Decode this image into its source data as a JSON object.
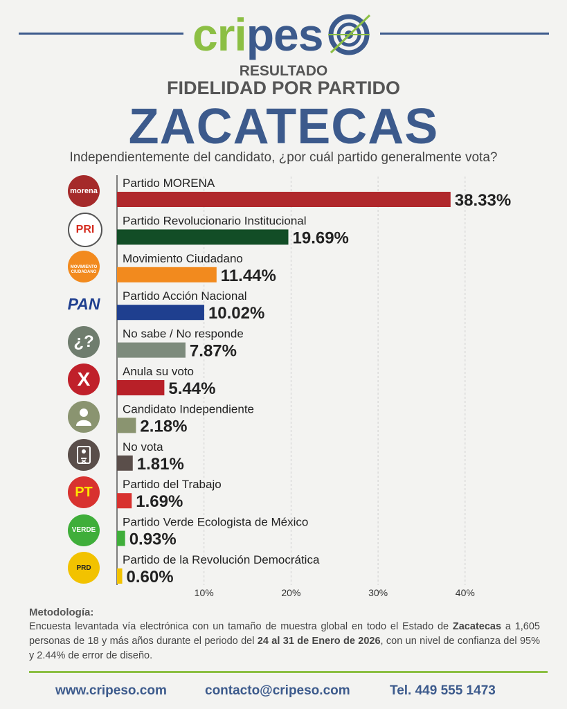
{
  "header": {
    "logo_part1": "cripes",
    "logo_part2": "o",
    "subtitle_1": "RESULTADO",
    "subtitle_2": "FIDELIDAD POR PARTIDO",
    "state": "ZACATECAS",
    "question": "Independientemente del candidato, ¿por cuál partido generalmente vota?"
  },
  "chart_data": {
    "type": "bar",
    "orientation": "horizontal",
    "title": "FIDELIDAD POR PARTIDO",
    "xlim": [
      0,
      40
    ],
    "xticks": [
      "10%",
      "20%",
      "30%",
      "40%"
    ],
    "grid": true,
    "categories": [
      "Partido MORENA",
      "Partido Revolucionario Institucional",
      "Movimiento Ciudadano",
      "Partido Acción Nacional",
      "No sabe / No responde",
      "Anula su voto",
      "Candidato Independiente",
      "No vota",
      "Partido del Trabajo",
      "Partido Verde Ecologista de México",
      "Partido de la Revolución Democrática"
    ],
    "values": [
      38.33,
      19.69,
      11.44,
      10.02,
      7.87,
      5.44,
      2.18,
      1.81,
      1.69,
      0.93,
      0.6
    ],
    "value_labels": [
      "38.33%",
      "19.69%",
      "11.44%",
      "10.02%",
      "7.87%",
      "5.44%",
      "2.18%",
      "1.81%",
      "1.69%",
      "0.93%",
      "0.60%"
    ],
    "colors": [
      "#b0282c",
      "#124d26",
      "#f28a1e",
      "#1f3f8f",
      "#7d8b7c",
      "#b82028",
      "#8a9470",
      "#5a4e4a",
      "#d8322f",
      "#3fae3a",
      "#f2c200"
    ],
    "icons": [
      {
        "name": "morena-logo-icon",
        "text": "morena",
        "bg": "#a52a2a",
        "fg": "#ffffff"
      },
      {
        "name": "pri-logo-icon",
        "text": "PRI",
        "bg": "#ffffff",
        "fg": "#d52b1e"
      },
      {
        "name": "movimiento-ciudadano-logo-icon",
        "text": "MOVIMIENTO CIUDADANO",
        "bg": "#f28a1e",
        "fg": "#ffffff"
      },
      {
        "name": "pan-logo-icon",
        "text": "PAN",
        "bg": "transparent",
        "fg": "#1f3f8f"
      },
      {
        "name": "question-icon",
        "text": "¿?",
        "bg": "#6f7d6e",
        "fg": "#ffffff"
      },
      {
        "name": "cross-icon",
        "text": "X",
        "bg": "#c0202a",
        "fg": "#ffffff"
      },
      {
        "name": "person-icon",
        "text": "",
        "bg": "#8a9470",
        "fg": "#ffffff"
      },
      {
        "name": "ballot-icon",
        "text": "",
        "bg": "#5a4e4a",
        "fg": "#ffffff"
      },
      {
        "name": "pt-logo-icon",
        "text": "PT",
        "bg": "#d8322f",
        "fg": "#ffe400"
      },
      {
        "name": "verde-logo-icon",
        "text": "VERDE",
        "bg": "#3fae3a",
        "fg": "#ffffff"
      },
      {
        "name": "prd-logo-icon",
        "text": "PRD",
        "bg": "#f2c200",
        "fg": "#222222"
      }
    ]
  },
  "methodology": {
    "title": "Metodología:",
    "text_1": "Encuesta levantada vía electrónica con un tamaño de muestra global en todo el Estado de ",
    "bold_1": "Zacatecas",
    "text_2": " a 1,605 personas de 18 y más años durante el periodo del ",
    "bold_2": "24 al 31 de Enero de 2026",
    "text_3": ", con un nivel de confianza del 95% y 2.44% de error de diseño."
  },
  "footer": {
    "website": "www.cripeso.com",
    "email": "contacto@cripeso.com",
    "phone": "Tel. 449 555 1473"
  }
}
